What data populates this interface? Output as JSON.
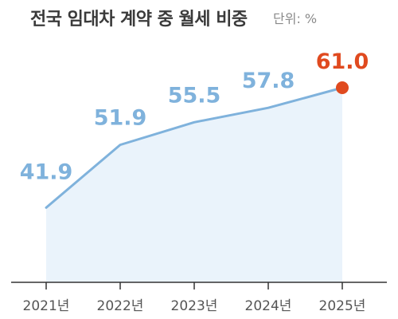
{
  "chart_data": {
    "type": "area",
    "title": "전국 임대차 계약 중 월세 비중",
    "unit": "단위: %",
    "categories": [
      "2021년",
      "2022년",
      "2023년",
      "2024년",
      "2025년"
    ],
    "series": [
      {
        "values": [
          41.9,
          51.9,
          55.5,
          57.8,
          61.0
        ],
        "data_labels": [
          "41.9",
          "51.9",
          "55.5",
          "57.8",
          "61.0"
        ]
      }
    ],
    "ylim": [
      30,
      61
    ],
    "grid": false,
    "colors": {
      "line": "#7fb2dc",
      "area": "#eaf3fb",
      "label": "#7fb2dc",
      "highlight": "#e04a1f",
      "axis": "#555555"
    }
  }
}
